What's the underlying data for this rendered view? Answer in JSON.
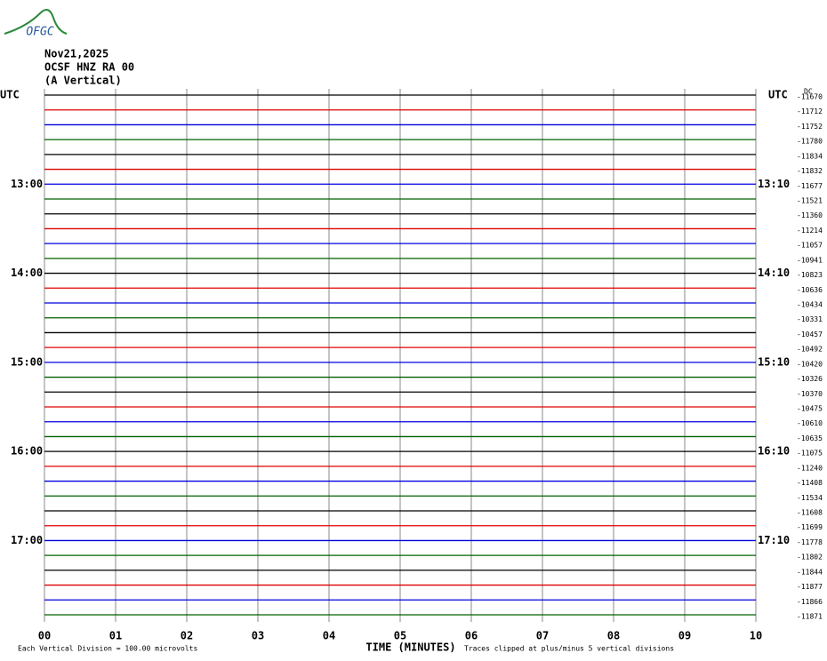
{
  "logo": "OFGC",
  "header": {
    "date": "Nov21,2025",
    "station": "OCSF HNZ RA 00",
    "component": "(A Vertical)"
  },
  "chart_data": {
    "type": "helicorder",
    "left_title": "UTC",
    "right_title": "UTC",
    "offset_title": "DC",
    "xlabel": "TIME (MINUTES)",
    "footer_left": "Each Vertical Division =  100.00 microvolts",
    "footer_right": "Traces clipped at plus/minus 5 vertical divisions",
    "xlim": [
      0,
      10
    ],
    "xticks": [
      {
        "value": 0,
        "label": "00"
      },
      {
        "value": 1,
        "label": "01"
      },
      {
        "value": 2,
        "label": "02"
      },
      {
        "value": 3,
        "label": "03"
      },
      {
        "value": 4,
        "label": "04"
      },
      {
        "value": 5,
        "label": "05"
      },
      {
        "value": 6,
        "label": "06"
      },
      {
        "value": 7,
        "label": "07"
      },
      {
        "value": 8,
        "label": "08"
      },
      {
        "value": 9,
        "label": "09"
      },
      10
    ],
    "colors": [
      "#000000",
      "#e00000",
      "#0000e0",
      "#006000"
    ],
    "left_labels": [
      null,
      null,
      null,
      null,
      null,
      null,
      "13:00",
      null,
      null,
      null,
      null,
      null,
      "14:00",
      null,
      null,
      null,
      null,
      null,
      "15:00",
      null,
      null,
      null,
      null,
      null,
      "16:00",
      null,
      null,
      null,
      null,
      null,
      "17:00",
      null,
      null,
      null,
      null,
      null
    ],
    "right_labels": [
      null,
      null,
      null,
      null,
      null,
      null,
      "13:10",
      null,
      null,
      null,
      null,
      null,
      "14:10",
      null,
      null,
      null,
      null,
      null,
      "15:10",
      null,
      null,
      null,
      null,
      null,
      "16:10",
      null,
      null,
      null,
      null,
      null,
      "17:10",
      null,
      null,
      null,
      null,
      null
    ],
    "dc_offsets": [
      -11670,
      -11712,
      -11752,
      -11780,
      -11834,
      -11832,
      -11677,
      -11521,
      -11360,
      -11214,
      -11057,
      -10941,
      -10823,
      -10636,
      -10434,
      -10331,
      -10457,
      -10492,
      -10420,
      -10326,
      -10370,
      -10475,
      -10610,
      -10635,
      -11075,
      -11240,
      -11408,
      -11534,
      -11608,
      -11699,
      -11778,
      -11802,
      -11844,
      -11877,
      -11866,
      -11871
    ]
  }
}
